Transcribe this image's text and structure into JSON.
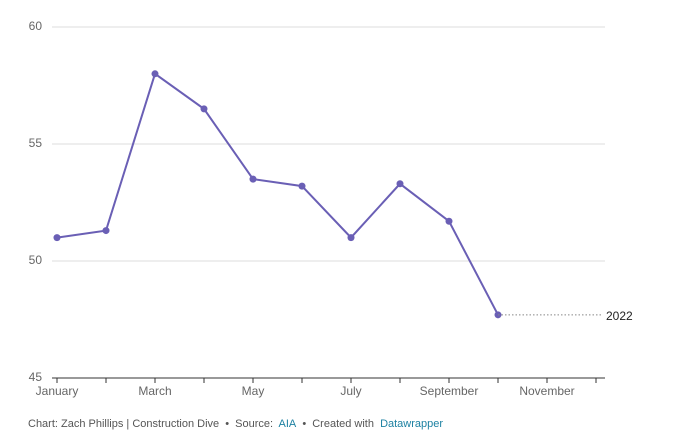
{
  "chart_data": {
    "type": "line",
    "categories": [
      "January",
      null,
      "March",
      null,
      "May",
      null,
      "July",
      null,
      "September",
      null,
      "November",
      null
    ],
    "series": [
      {
        "name": "2022",
        "color": "#6a5fb5",
        "values": [
          51.0,
          51.3,
          58.0,
          56.5,
          53.5,
          53.2,
          51.0,
          53.3,
          51.7,
          47.7,
          null,
          null
        ]
      }
    ],
    "ylim": [
      45,
      60
    ],
    "yticks": [
      45,
      50,
      55,
      60
    ],
    "grid": true
  },
  "footer": {
    "credit": "Chart: Zach Phillips | Construction Dive",
    "sep": "•",
    "source_label": "Source:",
    "source": "AIA",
    "created": "Created with",
    "tool": "Datawrapper"
  }
}
